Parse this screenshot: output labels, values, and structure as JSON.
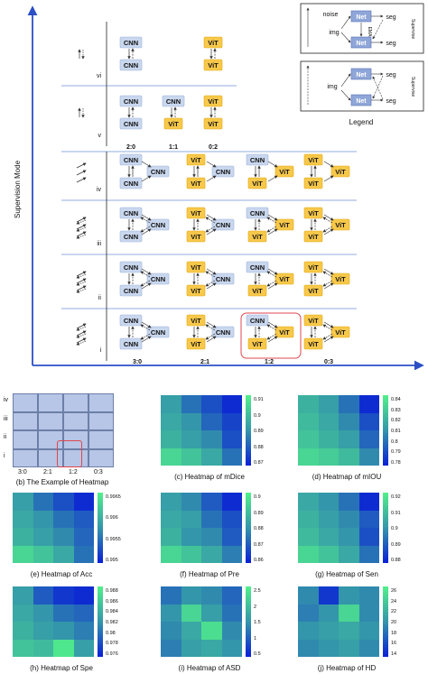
{
  "axes": {
    "y_label": "Supervision Mode",
    "x_label": "The Ratio of CNN/ViT",
    "caption": "(a) Frameworks",
    "row_labels": [
      "vi",
      "v",
      "iv",
      "iii",
      "ii",
      "i"
    ],
    "col_labels_bottom": [
      "3:0",
      "2:1",
      "1:2",
      "0:3"
    ],
    "col_labels_v": [
      "2:0",
      "1:1",
      "0:2"
    ]
  },
  "legend": {
    "title": "Legend",
    "box1": {
      "noise": "noise",
      "img": "img",
      "net": "Net",
      "seg": "seg",
      "ema": "EMA",
      "supervise": "Supervise"
    },
    "box2": {
      "img": "img",
      "net": "Net",
      "seg": "seg",
      "supervise": "Supervise"
    }
  },
  "nodes": {
    "cnn": "CNN",
    "vit": "ViT"
  },
  "colors": {
    "cnn_fill": "#c9d7ee",
    "vit_fill": "#f7c84a",
    "axis": "#2b4fc4",
    "net_fill": "#8fa6d9",
    "highlight": "#e0474c"
  },
  "example": {
    "rows": [
      "iv",
      "iii",
      "ii",
      "i"
    ],
    "cols": [
      "3:0",
      "2:1",
      "1:2",
      "0:3"
    ],
    "caption": "(b) The Example of Heatmap"
  },
  "heatmaps": [
    {
      "id": "mdice",
      "caption": "(c) Heatmap of mDice",
      "ticks": [
        "0.91",
        "0.9",
        "0.89",
        "0.88",
        "0.87"
      ],
      "values": [
        [
          0.55,
          0.35,
          0.2,
          0.05
        ],
        [
          0.6,
          0.5,
          0.3,
          0.15
        ],
        [
          0.65,
          0.55,
          0.45,
          0.2
        ],
        [
          0.85,
          0.75,
          0.6,
          0.35
        ]
      ]
    },
    {
      "id": "miou",
      "caption": "(d) Heatmap of mIOU",
      "ticks": [
        "0.84",
        "0.83",
        "0.82",
        "0.81",
        "0.8",
        "0.79",
        "0.78"
      ],
      "values": [
        [
          0.65,
          0.55,
          0.35,
          0.05
        ],
        [
          0.7,
          0.6,
          0.45,
          0.2
        ],
        [
          0.75,
          0.65,
          0.55,
          0.3
        ],
        [
          0.85,
          0.8,
          0.7,
          0.45
        ]
      ]
    },
    {
      "id": "acc",
      "caption": "(e) Heatmap of Acc",
      "ticks": [
        "0.9965",
        "0.996",
        "0.9955",
        "0.995"
      ],
      "values": [
        [
          0.55,
          0.35,
          0.2,
          0.05
        ],
        [
          0.6,
          0.5,
          0.35,
          0.25
        ],
        [
          0.65,
          0.55,
          0.45,
          0.3
        ],
        [
          0.85,
          0.75,
          0.6,
          0.35
        ]
      ]
    },
    {
      "id": "pre",
      "caption": "(f) Heatmap of Pre",
      "ticks": [
        "0.9",
        "0.89",
        "0.88",
        "0.87",
        "0.86"
      ],
      "values": [
        [
          0.55,
          0.45,
          0.25,
          0.05
        ],
        [
          0.6,
          0.55,
          0.35,
          0.2
        ],
        [
          0.65,
          0.5,
          0.45,
          0.25
        ],
        [
          0.85,
          0.75,
          0.6,
          0.4
        ]
      ]
    },
    {
      "id": "sen",
      "caption": "(g) Heatmap of Sen",
      "ticks": [
        "0.92",
        "0.91",
        "0.9",
        "0.89",
        "0.88"
      ],
      "values": [
        [
          0.6,
          0.5,
          0.35,
          0.05
        ],
        [
          0.65,
          0.55,
          0.45,
          0.25
        ],
        [
          0.7,
          0.6,
          0.5,
          0.2
        ],
        [
          0.85,
          0.75,
          0.6,
          0.35
        ]
      ]
    },
    {
      "id": "spe",
      "caption": "(h) Heatmap of Spe",
      "ticks": [
        "0.988",
        "0.986",
        "0.984",
        "0.982",
        "0.98",
        "0.978",
        "0.976"
      ],
      "values": [
        [
          0.55,
          0.25,
          0.1,
          0.05
        ],
        [
          0.6,
          0.5,
          0.35,
          0.3
        ],
        [
          0.65,
          0.55,
          0.5,
          0.4
        ],
        [
          0.75,
          0.7,
          0.95,
          0.55
        ]
      ]
    },
    {
      "id": "asd",
      "caption": "(i) Heatmap of ASD",
      "ticks": [
        "2.5",
        "2",
        "1.5",
        "1",
        "0.5"
      ],
      "values": [
        [
          0.35,
          0.5,
          0.45,
          0.3
        ],
        [
          0.5,
          0.85,
          0.55,
          0.35
        ],
        [
          0.45,
          0.6,
          0.9,
          0.45
        ],
        [
          0.4,
          0.55,
          0.6,
          0.5
        ]
      ]
    },
    {
      "id": "hd",
      "caption": "(j) Heatmap of HD",
      "ticks": [
        "26",
        "24",
        "22",
        "20",
        "18",
        "16",
        "14"
      ],
      "values": [
        [
          0.45,
          0.1,
          0.5,
          0.45
        ],
        [
          0.4,
          0.5,
          0.85,
          0.45
        ],
        [
          0.5,
          0.55,
          0.6,
          0.5
        ],
        [
          0.45,
          0.5,
          0.55,
          0.45
        ]
      ]
    }
  ]
}
